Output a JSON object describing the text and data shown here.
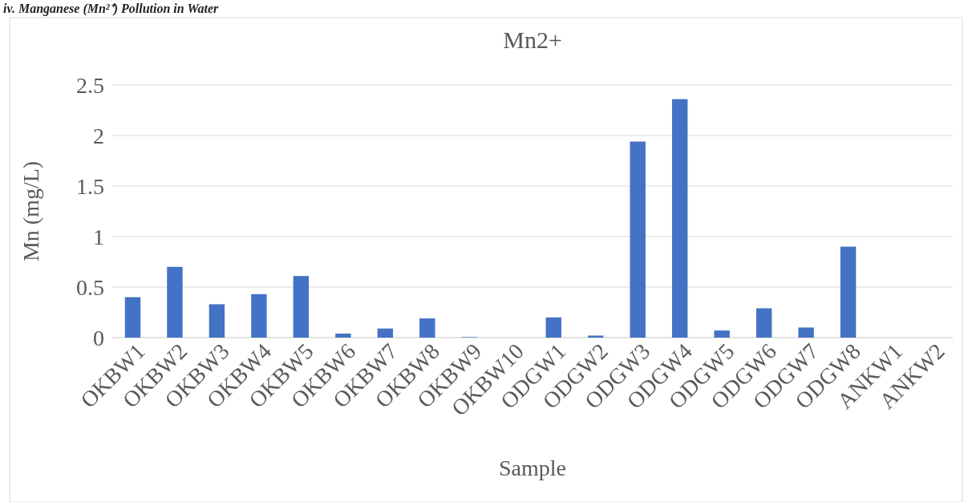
{
  "chart_data": {
    "type": "bar",
    "title": "Mn2+",
    "xlabel": "Sample",
    "ylabel": "Mn (mg/L)",
    "annotations": [
      "iv. Manganese (Mn²⁺) Pollution in Water"
    ],
    "categories": [
      "OKBW1",
      "OKBW2",
      "OKBW3",
      "OKBW4",
      "OKBW5",
      "OKBW6",
      "OKBW7",
      "OKBW8",
      "OKBW9",
      "OKBW10",
      "ODGW1",
      "ODGW2",
      "ODGW3",
      "ODGW4",
      "ODGW5",
      "ODGW6",
      "ODGW7",
      "ODGW8",
      "ANKW1",
      "ANKW2"
    ],
    "values": [
      0.4,
      0.7,
      0.33,
      0.43,
      0.61,
      0.04,
      0.09,
      0.19,
      0.005,
      0,
      0.2,
      0.02,
      1.94,
      2.36,
      0.07,
      0.29,
      0.1,
      0.9,
      0,
      0
    ],
    "color": "#4472c4",
    "ylim": [
      0,
      2.5
    ],
    "yticks": [
      0,
      0.5,
      1,
      1.5,
      2,
      2.5
    ],
    "grid": "y"
  }
}
